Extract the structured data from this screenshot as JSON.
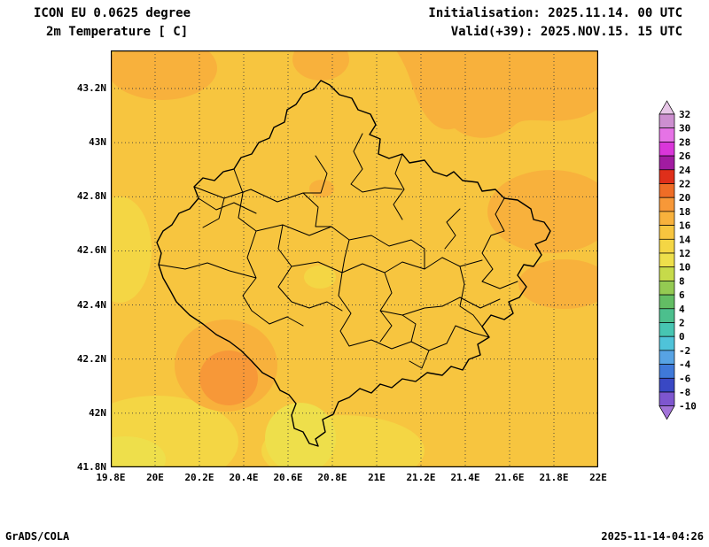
{
  "header": {
    "model": "ICON EU 0.0625 degree",
    "field": "2m Temperature [ C]",
    "init": "Initialisation: 2025.11.14. 00 UTC",
    "valid": "Valid(+39): 2025.NOV.15. 15 UTC"
  },
  "map": {
    "lat_ticks": [
      "43.2N",
      "43N",
      "42.8N",
      "42.6N",
      "42.4N",
      "42.2N",
      "42N",
      "41.8N"
    ],
    "lon_ticks": [
      "19.8E",
      "20E",
      "20.2E",
      "20.4E",
      "20.6E",
      "20.8E",
      "21E",
      "21.2E",
      "21.4E",
      "21.6E",
      "21.8E",
      "22E"
    ]
  },
  "colorbar": {
    "labels": [
      "32",
      "30",
      "28",
      "26",
      "24",
      "22",
      "20",
      "18",
      "16",
      "14",
      "12",
      "10",
      "8",
      "6",
      "4",
      "2",
      "0",
      "-2",
      "-4",
      "-6",
      "-8",
      "-10"
    ],
    "colors_top_to_bottom": [
      "#e7c6e7",
      "#cd8fd0",
      "#e673e6",
      "#d936d9",
      "#a11ba1",
      "#df2f1a",
      "#ef6d26",
      "#f79838",
      "#f8b13c",
      "#f7c53f",
      "#f4d644",
      "#eedf4b",
      "#c6da4a",
      "#94ca52",
      "#63bd64",
      "#4cbf8d",
      "#47c5b2",
      "#4fc3d9",
      "#57a3e4",
      "#3f79d9",
      "#3948c4",
      "#7e56cf",
      "#a273d8"
    ]
  },
  "footer": {
    "left": "GrADS/COLA",
    "right": "2025-11-14-04:26"
  }
}
